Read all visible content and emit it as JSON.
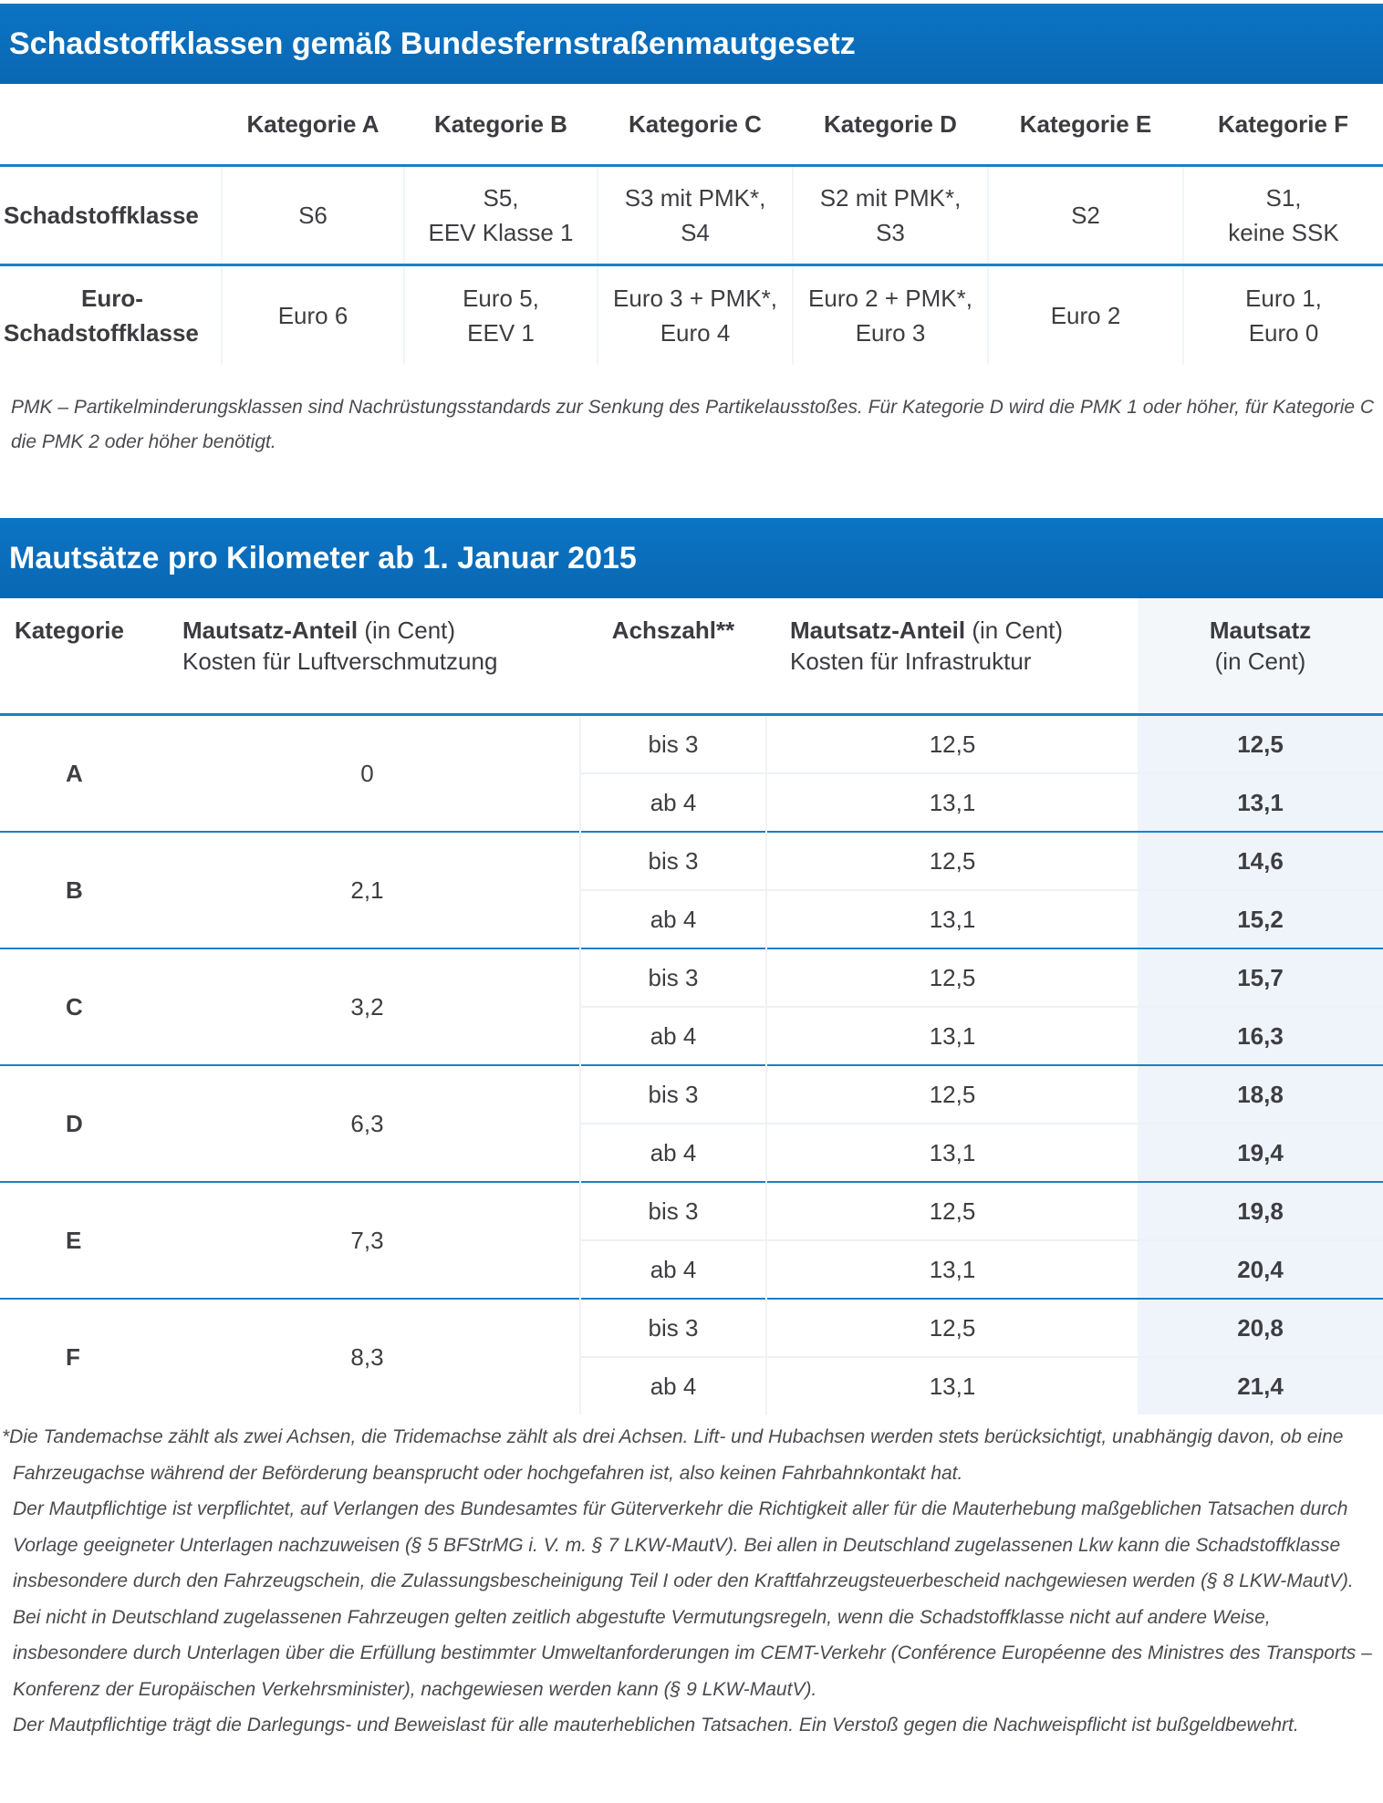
{
  "section1": {
    "title": "Schadstoffklassen gemäß Bundesfernstraßenmautgesetz",
    "columns": [
      "Kategorie A",
      "Kategorie B",
      "Kategorie C",
      "Kategorie D",
      "Kategorie E",
      "Kategorie F"
    ],
    "rows": [
      {
        "label": "Schadstoffklasse",
        "cells": [
          [
            "S6"
          ],
          [
            "S5,",
            "EEV Klasse 1"
          ],
          [
            "S3 mit PMK*,",
            "S4"
          ],
          [
            "S2 mit PMK*,",
            "S3"
          ],
          [
            "S2"
          ],
          [
            "S1,",
            "keine SSK"
          ]
        ]
      },
      {
        "label": "Euro-\nSchadstoffklasse",
        "cells": [
          [
            "Euro 6"
          ],
          [
            "Euro 5,",
            "EEV 1"
          ],
          [
            "Euro 3 + PMK*,",
            "Euro 4"
          ],
          [
            "Euro 2 + PMK*,",
            "Euro 3"
          ],
          [
            "Euro 2"
          ],
          [
            "Euro 1,",
            "Euro 0"
          ]
        ]
      }
    ],
    "footnote": "PMK – Partikelminderungsklassen sind Nachrüstungsstandards zur Senkung des Partikelausstoßes. Für Kategorie D wird die PMK 1 oder höher, für Kategorie C die PMK 2 oder höher benötigt."
  },
  "section2": {
    "title": "Mautsätze pro Kilometer ab 1. Januar 2015",
    "headers": {
      "kategorie": "Kategorie",
      "luft_bold": "Mautsatz-Anteil",
      "luft_unit": " (in Cent)",
      "luft_sub": "Kosten für Luftverschmutzung",
      "achszahl": "Achszahl**",
      "infra_bold": "Mautsatz-Anteil",
      "infra_unit": " (in Cent)",
      "infra_sub": "Kosten für Infrastruktur",
      "total": "Mautsatz",
      "total_unit": "(in Cent)"
    },
    "rows": [
      {
        "kategorie": "A",
        "luft": "0",
        "sub": [
          {
            "achs": "bis 3",
            "infra": "12,5",
            "total": "12,5"
          },
          {
            "achs": "ab 4",
            "infra": "13,1",
            "total": "13,1"
          }
        ]
      },
      {
        "kategorie": "B",
        "luft": "2,1",
        "sub": [
          {
            "achs": "bis 3",
            "infra": "12,5",
            "total": "14,6"
          },
          {
            "achs": "ab 4",
            "infra": "13,1",
            "total": "15,2"
          }
        ]
      },
      {
        "kategorie": "C",
        "luft": "3,2",
        "sub": [
          {
            "achs": "bis 3",
            "infra": "12,5",
            "total": "15,7"
          },
          {
            "achs": "ab 4",
            "infra": "13,1",
            "total": "16,3"
          }
        ]
      },
      {
        "kategorie": "D",
        "luft": "6,3",
        "sub": [
          {
            "achs": "bis 3",
            "infra": "12,5",
            "total": "18,8"
          },
          {
            "achs": "ab 4",
            "infra": "13,1",
            "total": "19,4"
          }
        ]
      },
      {
        "kategorie": "E",
        "luft": "7,3",
        "sub": [
          {
            "achs": "bis 3",
            "infra": "12,5",
            "total": "19,8"
          },
          {
            "achs": "ab 4",
            "infra": "13,1",
            "total": "20,4"
          }
        ]
      },
      {
        "kategorie": "F",
        "luft": "8,3",
        "sub": [
          {
            "achs": "bis 3",
            "infra": "12,5",
            "total": "20,8"
          },
          {
            "achs": "ab 4",
            "infra": "13,1",
            "total": "21,4"
          }
        ]
      }
    ],
    "notes": [
      "*Die Tandemachse zählt als zwei Achsen, die Tridemachse zählt als drei Achsen. Lift- und Hubachsen werden stets berücksichtigt, unabhängig davon, ob eine Fahrzeugachse während der Beförderung beansprucht oder hochgefahren ist, also keinen Fahrbahnkontakt hat.",
      "Der Mautpflichtige ist verpflichtet, auf Verlangen des Bundesamtes für Güterverkehr die Richtigkeit aller für die Mauterhebung maßgeblichen Tatsachen durch Vorlage geeigneter Unterlagen nachzuweisen (§ 5 BFStrMG i. V. m. § 7 LKW-MautV). Bei allen in Deutschland zugelassenen Lkw kann die Schadstoffklasse insbesondere durch den Fahrzeugschein, die Zulassungsbescheinigung Teil I oder den Kraftfahrzeugsteuerbescheid nachgewiesen werden (§ 8 LKW-MautV).",
      "Bei nicht in Deutschland zugelassenen Fahrzeugen gelten zeitlich abgestufte Vermutungsregeln, wenn die Schadstoffklasse nicht auf andere Weise, insbesondere durch Unterlagen über die Erfüllung bestimmter Umweltanforderungen im CEMT-Verkehr (Conférence Européenne des Ministres des Transports – Konferenz der Europäischen Verkehrsminister), nachgewiesen werden kann (§ 9 LKW-MautV).",
      "Der Mautpflichtige trägt die Darlegungs- und Beweislast für alle mauterheblichen Tatsachen. Ein Verstoß gegen die Nachweispflicht ist bußgeldbewehrt."
    ]
  }
}
